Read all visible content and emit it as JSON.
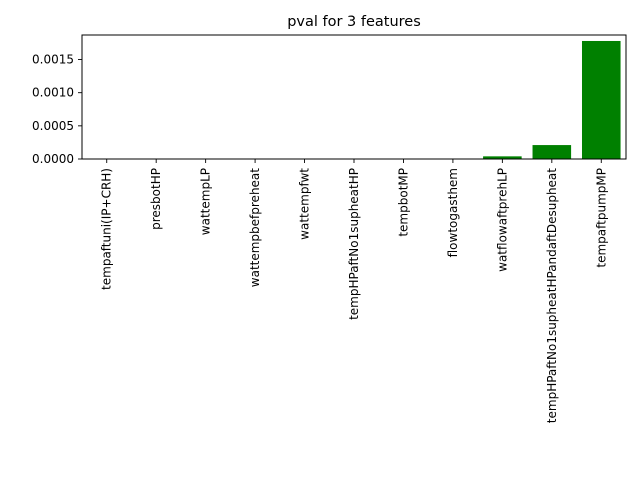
{
  "chart_data": {
    "type": "bar",
    "title": "pval for 3 features",
    "xlabel": "",
    "ylabel": "",
    "categories": [
      "tempaftuni(IP+CRH)",
      "presbotHP",
      "wattempLP",
      "wattempbefpreheat",
      "wattempfwt",
      "tempHPaftNo1supheatHP",
      "tempbotMP",
      "flowtogasthem",
      "watflowaftprehLP",
      "tempHPaftNo1supheatHPandaftDesupheat",
      "tempaftpumpMP"
    ],
    "values": [
      0,
      0,
      0,
      0,
      0,
      0,
      0,
      0,
      4e-05,
      0.00021,
      0.00178
    ],
    "ylim": [
      0,
      0.00187
    ],
    "yticks": [
      0,
      0.0005,
      0.001,
      0.0015
    ],
    "ytick_labels": [
      "0.0000",
      "0.0005",
      "0.0010",
      "0.0015"
    ],
    "bar_color": "#008000",
    "grid": false,
    "legend": "none"
  }
}
